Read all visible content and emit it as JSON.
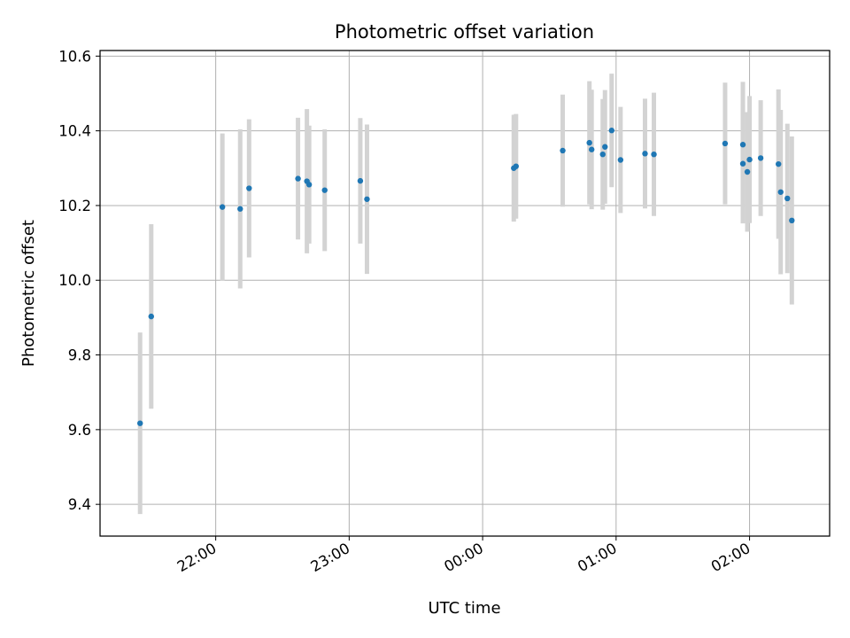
{
  "chart_data": {
    "type": "scatter",
    "title": "Photometric offset variation",
    "xlabel": "UTC time",
    "ylabel": "Photometric offset",
    "xlim": [
      "21:08",
      "02:36"
    ],
    "ylim": [
      9.315,
      10.615
    ],
    "grid": true,
    "x_ticks": [
      "22:00",
      "23:00",
      "00:00",
      "01:00",
      "02:00"
    ],
    "y_ticks": [
      "9.4",
      "9.6",
      "9.8",
      "10.0",
      "10.2",
      "10.4",
      "10.6"
    ],
    "marker_color": "#1f77b4",
    "errorbar_color": "#d3d3d3",
    "series": [
      {
        "points": [
          {
            "x": "21:26",
            "y": 9.617,
            "err": 0.243
          },
          {
            "x": "21:31",
            "y": 9.903,
            "err": 0.247
          },
          {
            "x": "22:03",
            "y": 10.196,
            "err": 0.197
          },
          {
            "x": "22:11",
            "y": 10.191,
            "err": 0.213
          },
          {
            "x": "22:15",
            "y": 10.246,
            "err": 0.185
          },
          {
            "x": "22:37",
            "y": 10.272,
            "err": 0.163
          },
          {
            "x": "22:41",
            "y": 10.265,
            "err": 0.193
          },
          {
            "x": "22:42",
            "y": 10.256,
            "err": 0.158
          },
          {
            "x": "22:49",
            "y": 10.241,
            "err": 0.163
          },
          {
            "x": "23:05",
            "y": 10.266,
            "err": 0.168
          },
          {
            "x": "23:08",
            "y": 10.217,
            "err": 0.2
          },
          {
            "x": "00:14",
            "y": 10.3,
            "err": 0.143
          },
          {
            "x": "00:15",
            "y": 10.305,
            "err": 0.14
          },
          {
            "x": "00:36",
            "y": 10.347,
            "err": 0.15
          },
          {
            "x": "00:48",
            "y": 10.368,
            "err": 0.165
          },
          {
            "x": "00:49",
            "y": 10.35,
            "err": 0.16
          },
          {
            "x": "00:54",
            "y": 10.337,
            "err": 0.148
          },
          {
            "x": "00:55",
            "y": 10.357,
            "err": 0.152
          },
          {
            "x": "00:58",
            "y": 10.401,
            "err": 0.152
          },
          {
            "x": "01:02",
            "y": 10.322,
            "err": 0.142
          },
          {
            "x": "01:13",
            "y": 10.339,
            "err": 0.147
          },
          {
            "x": "01:17",
            "y": 10.337,
            "err": 0.165
          },
          {
            "x": "01:49",
            "y": 10.366,
            "err": 0.163
          },
          {
            "x": "01:57",
            "y": 10.312,
            "err": 0.16
          },
          {
            "x": "01:57",
            "y": 10.363,
            "err": 0.168
          },
          {
            "x": "01:59",
            "y": 10.29,
            "err": 0.16
          },
          {
            "x": "02:00",
            "y": 10.323,
            "err": 0.17
          },
          {
            "x": "02:05",
            "y": 10.327,
            "err": 0.155
          },
          {
            "x": "02:13",
            "y": 10.311,
            "err": 0.2
          },
          {
            "x": "02:14",
            "y": 10.236,
            "err": 0.22
          },
          {
            "x": "02:17",
            "y": 10.219,
            "err": 0.2
          },
          {
            "x": "02:19",
            "y": 10.16,
            "err": 0.225
          }
        ]
      }
    ]
  }
}
